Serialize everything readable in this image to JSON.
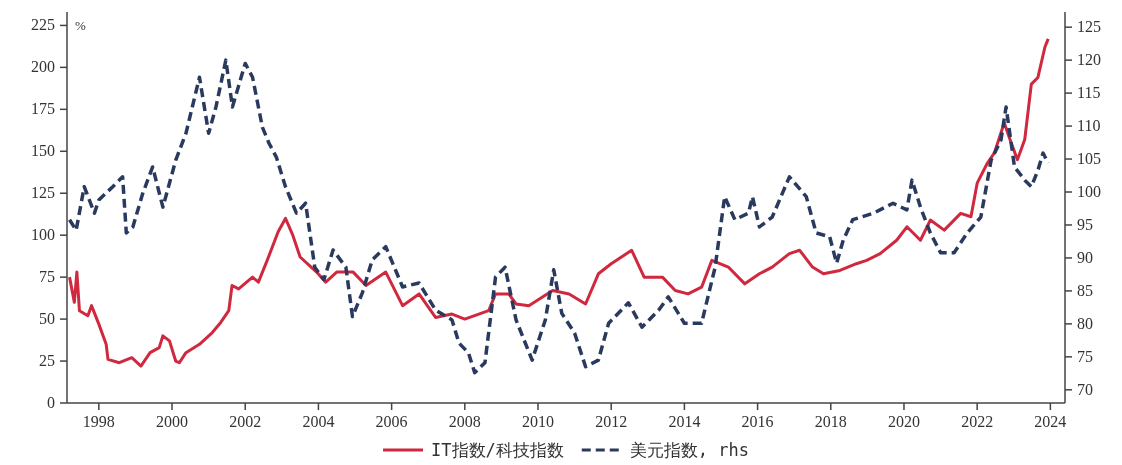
{
  "chart_data": {
    "type": "line",
    "ylabel": "%",
    "legend": "bottom",
    "xlim": [
      1997.13,
      2024.4
    ],
    "ylim": [
      0,
      233
    ],
    "y2lim": [
      68,
      127.3
    ],
    "xticks": [
      1998,
      2000,
      2002,
      2004,
      2006,
      2008,
      2010,
      2012,
      2014,
      2016,
      2018,
      2020,
      2022,
      2024
    ],
    "yticks": [
      0,
      25,
      50,
      75,
      100,
      125,
      150,
      175,
      200,
      225
    ],
    "y2ticks": [
      70,
      75,
      80,
      85,
      90,
      95,
      100,
      105,
      110,
      115,
      120,
      125
    ],
    "series": [
      {
        "name": "IT指数/科技指数",
        "color": "#d0283e",
        "line_style": "solid",
        "x": [
          1997.2,
          1997.33,
          1997.4,
          1997.47,
          1997.7,
          1997.8,
          1998.0,
          1998.2,
          1998.25,
          1998.56,
          1998.9,
          1999.15,
          1999.4,
          1999.65,
          1999.75,
          1999.93,
          2000.1,
          2000.2,
          2000.38,
          2000.75,
          2001.1,
          2001.33,
          2001.55,
          2001.64,
          2001.82,
          2002.2,
          2002.36,
          2002.6,
          2002.9,
          2003.1,
          2003.3,
          2003.5,
          2003.95,
          2004.2,
          2004.5,
          2004.95,
          2005.3,
          2005.84,
          2006.3,
          2006.75,
          2007.2,
          2007.65,
          2008.0,
          2008.65,
          2008.84,
          2009.2,
          2009.4,
          2009.75,
          2010.4,
          2010.85,
          2011.3,
          2011.65,
          2012.0,
          2012.56,
          2012.9,
          2013.4,
          2013.75,
          2014.1,
          2014.47,
          2014.75,
          2015.2,
          2015.65,
          2016.05,
          2016.4,
          2016.87,
          2017.15,
          2017.5,
          2017.8,
          2018.25,
          2018.7,
          2018.98,
          2019.35,
          2019.8,
          2020.08,
          2020.45,
          2020.72,
          2021.1,
          2021.55,
          2021.83,
          2022.0,
          2022.28,
          2022.47,
          2022.74,
          2022.93,
          2023.1,
          2023.3,
          2023.48,
          2023.66,
          2023.85,
          2023.94
        ],
        "values": [
          75,
          60,
          78,
          55,
          52,
          58,
          47,
          35,
          26,
          24,
          27,
          22,
          30,
          33,
          40,
          37,
          25,
          24,
          30,
          35,
          42,
          48,
          55,
          70,
          68,
          75,
          72,
          85,
          102,
          110,
          100,
          87,
          78,
          72,
          78,
          78,
          70,
          78,
          58,
          65,
          51,
          53,
          50,
          55,
          65,
          65,
          59,
          58,
          67,
          65,
          59,
          77,
          83,
          91,
          75,
          75,
          67,
          65,
          69,
          85,
          81,
          71,
          77,
          81,
          89,
          91,
          81,
          77,
          79,
          83,
          85,
          89,
          97,
          105,
          97,
          109,
          103,
          113,
          111,
          131,
          143,
          149,
          167,
          155,
          145,
          157,
          190,
          194,
          212,
          217
        ]
      },
      {
        "name": "美元指数, rhs",
        "color": "#2a3a5e",
        "line_style": "dashed",
        "axis": "y2",
        "x": [
          1997.2,
          1997.38,
          1997.6,
          1997.88,
          1998.0,
          1998.38,
          1998.65,
          1998.75,
          1998.93,
          1999.2,
          1999.47,
          1999.75,
          2000.1,
          2000.38,
          2000.75,
          2001.0,
          2001.2,
          2001.47,
          2001.65,
          2002.0,
          2002.2,
          2002.47,
          2002.65,
          2002.85,
          2003.1,
          2003.4,
          2003.65,
          2003.9,
          2004.15,
          2004.4,
          2004.75,
          2004.93,
          2005.2,
          2005.47,
          2005.84,
          2006.3,
          2006.75,
          2007.2,
          2007.65,
          2007.84,
          2008.1,
          2008.27,
          2008.55,
          2008.84,
          2009.1,
          2009.4,
          2009.84,
          2010.2,
          2010.43,
          2010.65,
          2011.0,
          2011.3,
          2011.65,
          2011.93,
          2012.47,
          2012.84,
          2013.3,
          2013.56,
          2014.0,
          2014.47,
          2014.84,
          2015.1,
          2015.38,
          2015.75,
          2015.86,
          2016.05,
          2016.4,
          2016.87,
          2017.33,
          2017.6,
          2017.97,
          2018.16,
          2018.34,
          2018.6,
          2019.17,
          2019.7,
          2020.08,
          2020.22,
          2020.45,
          2020.72,
          2021.0,
          2021.37,
          2021.73,
          2022.1,
          2022.38,
          2022.65,
          2022.79,
          2023.02,
          2023.3,
          2023.48,
          2023.66,
          2023.8,
          2023.94
        ],
        "values": [
          95.8,
          94.2,
          100.8,
          96.8,
          98.8,
          100.8,
          102.3,
          93.8,
          94.7,
          99.8,
          103.8,
          97.7,
          104.8,
          108.9,
          117.4,
          108.9,
          112.9,
          120,
          112.9,
          119.5,
          117.4,
          109.8,
          107.4,
          105.3,
          100.8,
          96.8,
          98.3,
          88.6,
          86.7,
          91.2,
          88.6,
          81.1,
          84.7,
          89.7,
          91.7,
          85.6,
          86.2,
          82.1,
          80.6,
          77.1,
          75.6,
          72.6,
          74.1,
          87.1,
          88.6,
          80.6,
          74.5,
          80.6,
          88.2,
          81.6,
          78.6,
          73.5,
          74.5,
          80.1,
          83.2,
          79.5,
          82.1,
          84.1,
          80.1,
          80.1,
          88.6,
          99.3,
          95.8,
          96.8,
          99.3,
          94.7,
          96.2,
          102.3,
          99.3,
          93.8,
          93.2,
          89.2,
          92.7,
          95.8,
          96.8,
          98.3,
          97.3,
          101.8,
          97.7,
          93.8,
          90.8,
          90.8,
          93.8,
          96.2,
          104.8,
          107.9,
          112.9,
          103.8,
          101.8,
          100.8,
          103.3,
          105.9,
          104.4
        ]
      }
    ]
  }
}
